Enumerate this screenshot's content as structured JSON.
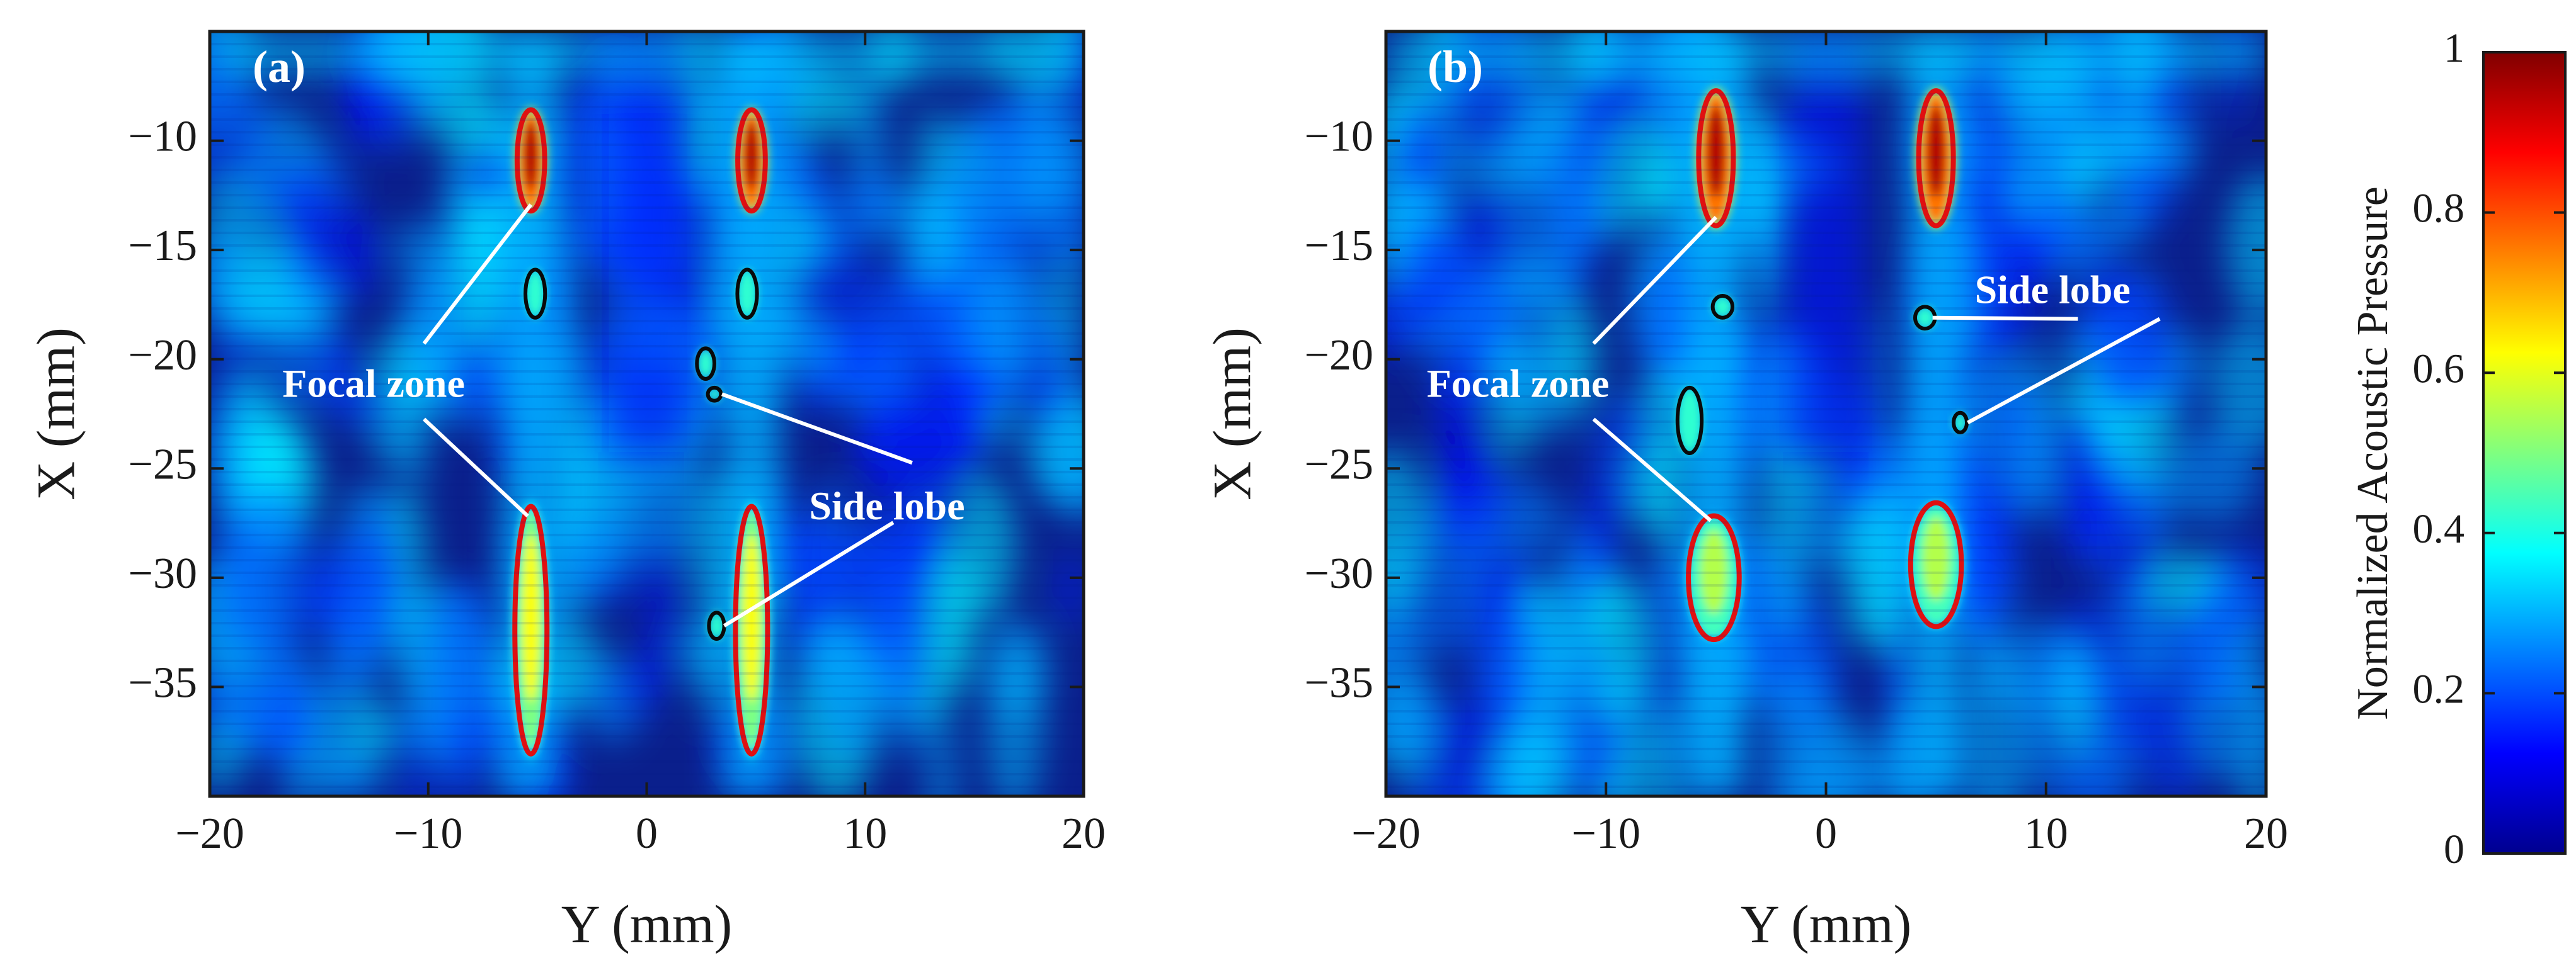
{
  "chart_data": [
    {
      "type": "heatmap",
      "panel_label": "(a)",
      "title": "",
      "xlabel": "Y (mm)",
      "ylabel": "X (mm)",
      "xlim": [
        -20,
        20
      ],
      "ylim": [
        -40,
        -5
      ],
      "x_ticks": [
        -20,
        -10,
        0,
        10,
        20
      ],
      "x_tick_labels": [
        "−20",
        "−10",
        "0",
        "10",
        "20"
      ],
      "y_ticks": [
        -10,
        -15,
        -20,
        -25,
        -30,
        -35
      ],
      "y_tick_labels": [
        "−10",
        "−15",
        "−20",
        "−25",
        "−30",
        "−35"
      ],
      "grid": false,
      "focal_zones": [
        {
          "cx": -5.3,
          "cy": -10.9,
          "w": 1.2,
          "h": 4.5,
          "peak": 0.95
        },
        {
          "cx": 4.8,
          "cy": -10.9,
          "w": 1.2,
          "h": 4.5,
          "peak": 0.95
        },
        {
          "cx": -5.3,
          "cy": -32.4,
          "w": 1.4,
          "h": 11.0,
          "peak": 0.62
        },
        {
          "cx": 4.8,
          "cy": -32.4,
          "w": 1.4,
          "h": 11.0,
          "peak": 0.62
        }
      ],
      "side_lobes": [
        {
          "cx": -5.1,
          "cy": -17.0,
          "w": 0.9,
          "h": 2.2
        },
        {
          "cx": 4.6,
          "cy": -17.0,
          "w": 0.9,
          "h": 2.2
        },
        {
          "cx": 2.7,
          "cy": -20.2,
          "w": 0.8,
          "h": 1.4
        },
        {
          "cx": 3.1,
          "cy": -21.6,
          "w": 0.6,
          "h": 0.6
        },
        {
          "cx": 3.2,
          "cy": -32.2,
          "w": 0.7,
          "h": 1.2
        }
      ],
      "annotations": [
        {
          "text": "Focal zone",
          "x": -12.5,
          "y": -21.3
        },
        {
          "text": "Side lobe",
          "x": 11.0,
          "y": -26.9
        }
      ]
    },
    {
      "type": "heatmap",
      "panel_label": "(b)",
      "title": "",
      "xlabel": "Y (mm)",
      "ylabel": "X (mm)",
      "xlim": [
        -20,
        20
      ],
      "ylim": [
        -40,
        -5
      ],
      "x_ticks": [
        -20,
        -10,
        0,
        10,
        20
      ],
      "x_tick_labels": [
        "−20",
        "−10",
        "0",
        "10",
        "20"
      ],
      "y_ticks": [
        -10,
        -15,
        -20,
        -25,
        -30,
        -35
      ],
      "y_tick_labels": [
        "−10",
        "−15",
        "−20",
        "−25",
        "−30",
        "−35"
      ],
      "grid": false,
      "focal_zones": [
        {
          "cx": -5.0,
          "cy": -10.8,
          "w": 1.5,
          "h": 6.0,
          "peak": 0.95
        },
        {
          "cx": 5.0,
          "cy": -10.8,
          "w": 1.5,
          "h": 6.0,
          "peak": 0.95
        },
        {
          "cx": -5.1,
          "cy": -30.0,
          "w": 2.2,
          "h": 5.5,
          "peak": 0.55
        },
        {
          "cx": 5.0,
          "cy": -29.4,
          "w": 2.2,
          "h": 5.5,
          "peak": 0.55
        }
      ],
      "side_lobes": [
        {
          "cx": -4.7,
          "cy": -17.6,
          "w": 0.9,
          "h": 1.0
        },
        {
          "cx": 4.5,
          "cy": -18.1,
          "w": 0.9,
          "h": 1.0
        },
        {
          "cx": -6.2,
          "cy": -22.8,
          "w": 1.1,
          "h": 3.0
        },
        {
          "cx": 6.1,
          "cy": -22.9,
          "w": 0.6,
          "h": 0.9
        }
      ],
      "annotations": [
        {
          "text": "Focal zone",
          "x": -14.0,
          "y": -21.3
        },
        {
          "text": "Side lobe",
          "x": 10.3,
          "y": -17.0
        }
      ]
    }
  ],
  "colorbar": {
    "label": "Normalized Acoustic Pressure",
    "range": [
      0,
      1
    ],
    "ticks": [
      0,
      0.2,
      0.4,
      0.6,
      0.8,
      1
    ],
    "tick_labels": [
      "0",
      "0.2",
      "0.4",
      "0.6",
      "0.8",
      "1"
    ],
    "colormap": "jet"
  },
  "colors": {
    "focal_contour": "#e01010",
    "side_lobe_contour": "#0a0a0a",
    "annotation_text": "#ffffff",
    "axis": "#1a1a1a",
    "background_low": "#0a1f8c"
  }
}
